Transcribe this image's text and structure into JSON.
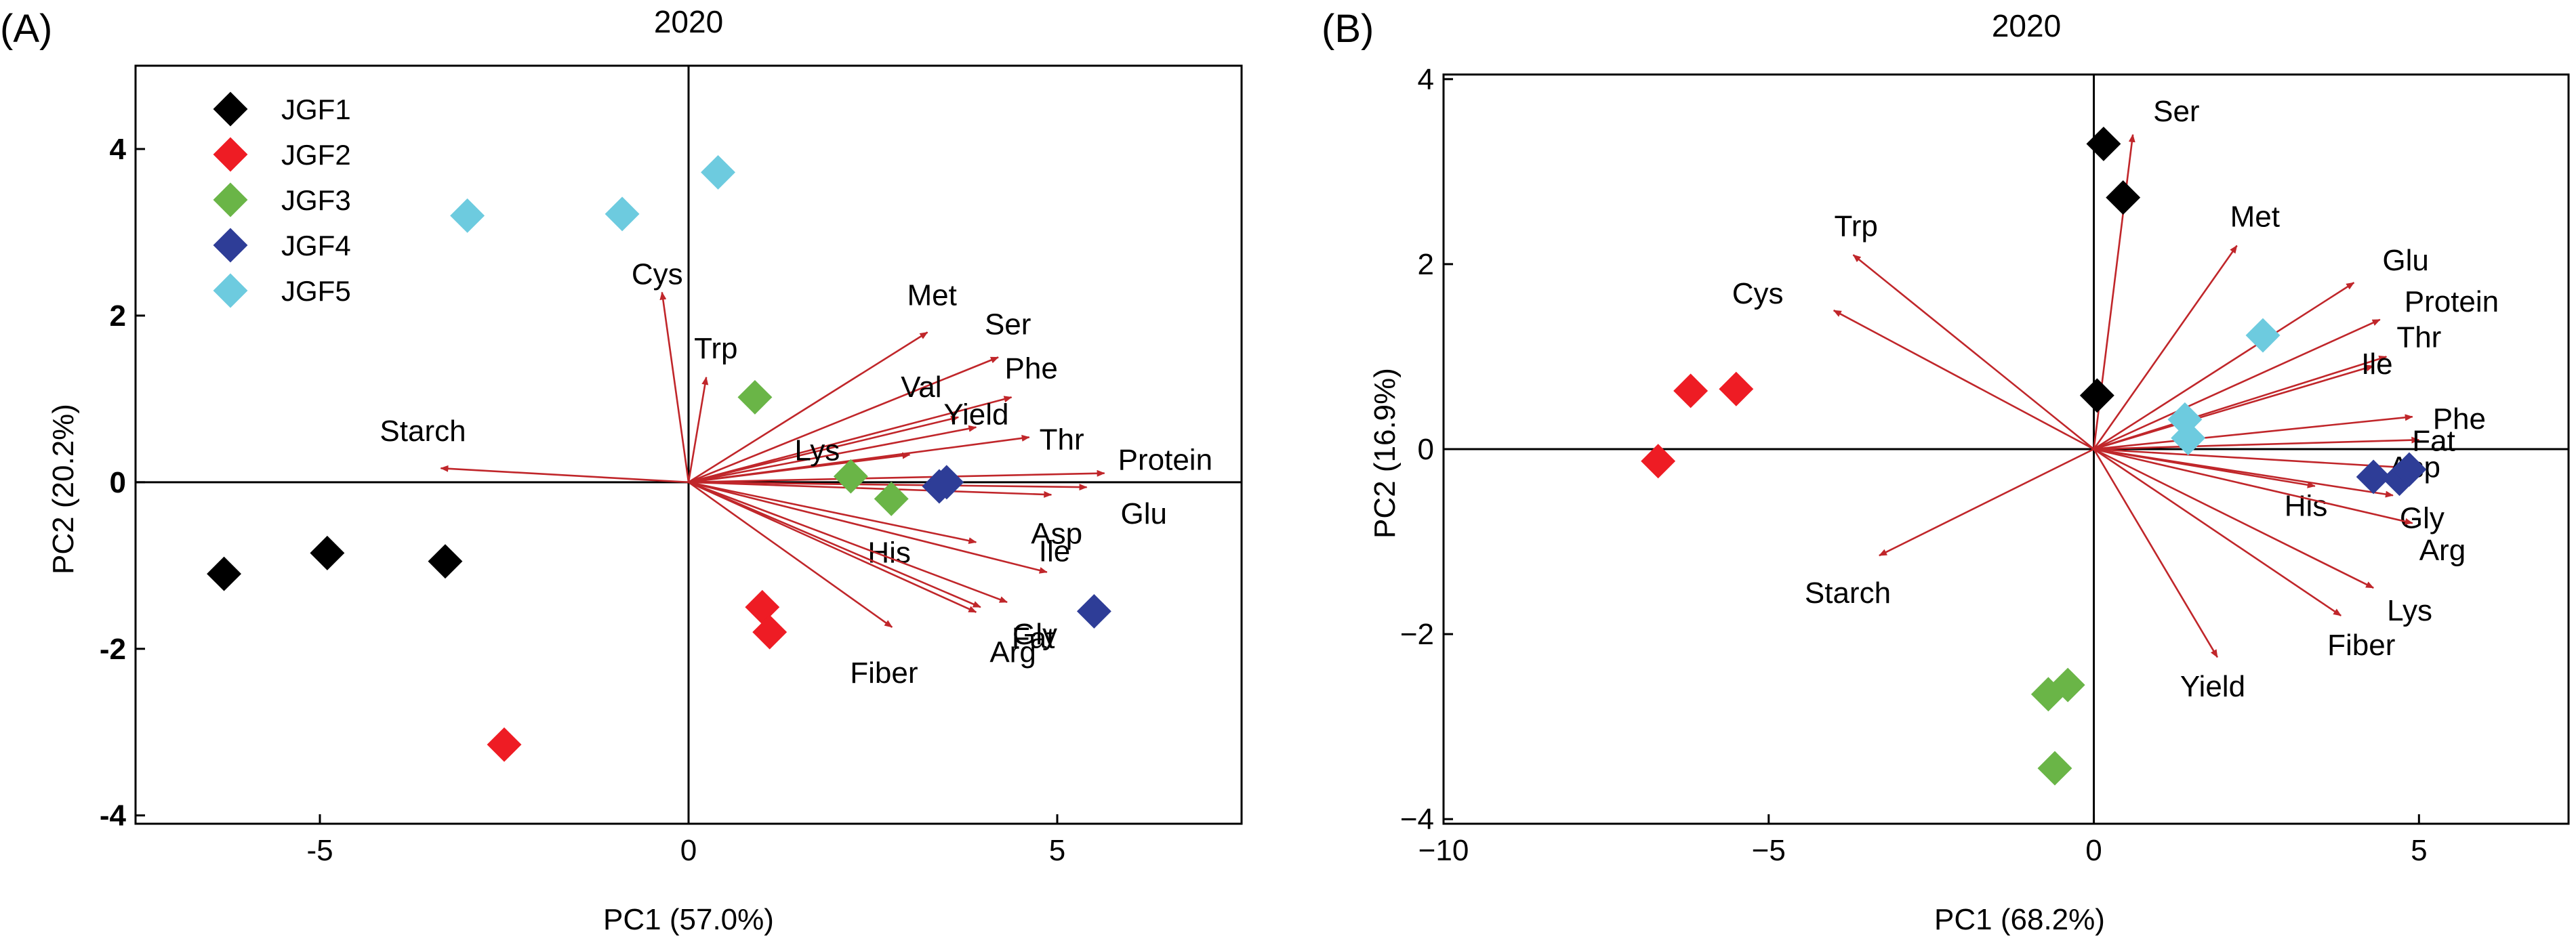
{
  "colors": {
    "vector": "#c0262a",
    "JGF1": "#000000",
    "JGF2": "#ee1c24",
    "JGF3": "#6ab547",
    "JGF4": "#2e3d97",
    "JGF5": "#6dcbdf"
  },
  "legend": {
    "items": [
      {
        "name": "JGF1",
        "color": "#000000",
        "icon": "diamond-icon"
      },
      {
        "name": "JGF2",
        "color": "#ee1c24",
        "icon": "diamond-icon"
      },
      {
        "name": "JGF3",
        "color": "#6ab547",
        "icon": "diamond-icon"
      },
      {
        "name": "JGF4",
        "color": "#2e3d97",
        "icon": "diamond-icon"
      },
      {
        "name": "JGF5",
        "color": "#6dcbdf",
        "icon": "diamond-icon"
      }
    ]
  },
  "chart_data": [
    {
      "type": "scatter",
      "panel_label": "(A)",
      "title": "2020",
      "xlabel": "PC1 (57.0%)",
      "ylabel": "PC2 (20.2%)",
      "xlim": [
        -7.5,
        7.5
      ],
      "ylim": [
        -4.1,
        5.0
      ],
      "xticks": [
        -5,
        0,
        5
      ],
      "xtick_labels": [
        "-5",
        "0",
        "5"
      ],
      "yticks": [
        -4,
        -2,
        0,
        2,
        4
      ],
      "ytick_labels": [
        "-4",
        "-2",
        "0",
        "2",
        "4"
      ],
      "ytick_bold": true,
      "legend_position": "top-left",
      "grid": false,
      "vectors": [
        {
          "name": "Cys",
          "x": -0.6,
          "y": 3.8
        },
        {
          "name": "Trp",
          "x": 0.4,
          "y": 2.1
        },
        {
          "name": "Met",
          "x": 5.4,
          "y": 3.0
        },
        {
          "name": "Ser",
          "x": 7.0,
          "y": 2.5
        },
        {
          "name": "Phe",
          "x": 7.3,
          "y": 1.7
        },
        {
          "name": "Val",
          "x": 6.1,
          "y": 1.3
        },
        {
          "name": "Yield",
          "x": 6.5,
          "y": 1.1
        },
        {
          "name": "Thr",
          "x": 7.7,
          "y": 0.9
        },
        {
          "name": "Lys",
          "x": 5.0,
          "y": 0.55
        },
        {
          "name": "Protein",
          "x": 9.4,
          "y": 0.18
        },
        {
          "name": "Glu",
          "x": 9.0,
          "y": -0.1
        },
        {
          "name": "Asp",
          "x": 8.2,
          "y": -0.25
        },
        {
          "name": "His",
          "x": 6.5,
          "y": -1.2
        },
        {
          "name": "Ile",
          "x": 8.1,
          "y": -1.8
        },
        {
          "name": "Gly",
          "x": 7.2,
          "y": -2.4
        },
        {
          "name": "Fat",
          "x": 6.6,
          "y": -2.5
        },
        {
          "name": "Arg",
          "x": 6.5,
          "y": -2.6
        },
        {
          "name": "Fiber",
          "x": 4.6,
          "y": -2.9
        },
        {
          "name": "Starch",
          "x": -5.6,
          "y": 0.28
        }
      ],
      "vector_scale": 0.6,
      "series": [
        {
          "name": "JGF1",
          "points": [
            [
              -6.3,
              -1.1
            ],
            [
              -4.9,
              -0.85
            ],
            [
              -3.3,
              -0.95
            ]
          ]
        },
        {
          "name": "JGF2",
          "points": [
            [
              1.0,
              -1.5
            ],
            [
              1.1,
              -1.8
            ],
            [
              -2.5,
              -3.15
            ]
          ]
        },
        {
          "name": "JGF3",
          "points": [
            [
              0.9,
              1.02
            ],
            [
              2.2,
              0.07
            ],
            [
              2.75,
              -0.2
            ]
          ]
        },
        {
          "name": "JGF4",
          "points": [
            [
              3.4,
              -0.05
            ],
            [
              3.5,
              0.0
            ],
            [
              5.5,
              -1.55
            ]
          ]
        },
        {
          "name": "JGF5",
          "points": [
            [
              -3.0,
              3.2
            ],
            [
              -0.9,
              3.22
            ],
            [
              0.4,
              3.72
            ]
          ]
        }
      ]
    },
    {
      "type": "scatter",
      "panel_label": "(B)",
      "title": "2020",
      "xlabel": "PC1 (68.2%)",
      "ylabel": "PC2 (16.9%)",
      "xlim": [
        -10,
        7.3
      ],
      "ylim": [
        -4.05,
        4.05
      ],
      "xticks": [
        -10,
        -5,
        0,
        5
      ],
      "xtick_labels": [
        "−10",
        "−5",
        "0",
        "5"
      ],
      "yticks": [
        -4,
        -2,
        0,
        2,
        4
      ],
      "ytick_labels": [
        "−4",
        "−2",
        "0",
        "2",
        "4"
      ],
      "ytick_bold": false,
      "legend_position": "none",
      "grid": false,
      "vectors": [
        {
          "name": "Ser",
          "x": 0.6,
          "y": 3.4
        },
        {
          "name": "Met",
          "x": 2.2,
          "y": 2.2
        },
        {
          "name": "Trp",
          "x": -3.7,
          "y": 2.1
        },
        {
          "name": "Cys",
          "x": -4.0,
          "y": 1.5
        },
        {
          "name": "Glu",
          "x": 4.0,
          "y": 1.8
        },
        {
          "name": "Protein",
          "x": 4.4,
          "y": 1.4
        },
        {
          "name": "Thr",
          "x": 4.5,
          "y": 1.0
        },
        {
          "name": "Ile",
          "x": 4.3,
          "y": 0.9
        },
        {
          "name": "Phe",
          "x": 4.9,
          "y": 0.35
        },
        {
          "name": "Fat",
          "x": 5.0,
          "y": 0.1
        },
        {
          "name": "Asp",
          "x": 4.8,
          "y": -0.2
        },
        {
          "name": "His",
          "x": 3.4,
          "y": -0.4
        },
        {
          "name": "Gly",
          "x": 4.6,
          "y": -0.5
        },
        {
          "name": "Arg",
          "x": 4.9,
          "y": -0.8
        },
        {
          "name": "Lys",
          "x": 4.3,
          "y": -1.5
        },
        {
          "name": "Fiber",
          "x": 3.8,
          "y": -1.8
        },
        {
          "name": "Yield",
          "x": 1.9,
          "y": -2.25
        },
        {
          "name": "Starch",
          "x": -3.3,
          "y": -1.15
        }
      ],
      "vector_scale": 1.0,
      "series": [
        {
          "name": "JGF1",
          "points": [
            [
              0.15,
              3.3
            ],
            [
              0.45,
              2.72
            ],
            [
              0.05,
              0.58
            ]
          ]
        },
        {
          "name": "JGF2",
          "points": [
            [
              -6.2,
              0.63
            ],
            [
              -5.5,
              0.65
            ],
            [
              -6.7,
              -0.13
            ]
          ]
        },
        {
          "name": "JGF3",
          "points": [
            [
              -0.4,
              -2.55
            ],
            [
              -0.7,
              -2.65
            ],
            [
              -0.6,
              -3.45
            ]
          ]
        },
        {
          "name": "JGF4",
          "points": [
            [
              4.3,
              -0.3
            ],
            [
              4.7,
              -0.32
            ],
            [
              4.85,
              -0.22
            ]
          ]
        },
        {
          "name": "JGF5",
          "points": [
            [
              2.6,
              1.23
            ],
            [
              1.4,
              0.32
            ],
            [
              1.45,
              0.12
            ]
          ]
        }
      ]
    }
  ]
}
